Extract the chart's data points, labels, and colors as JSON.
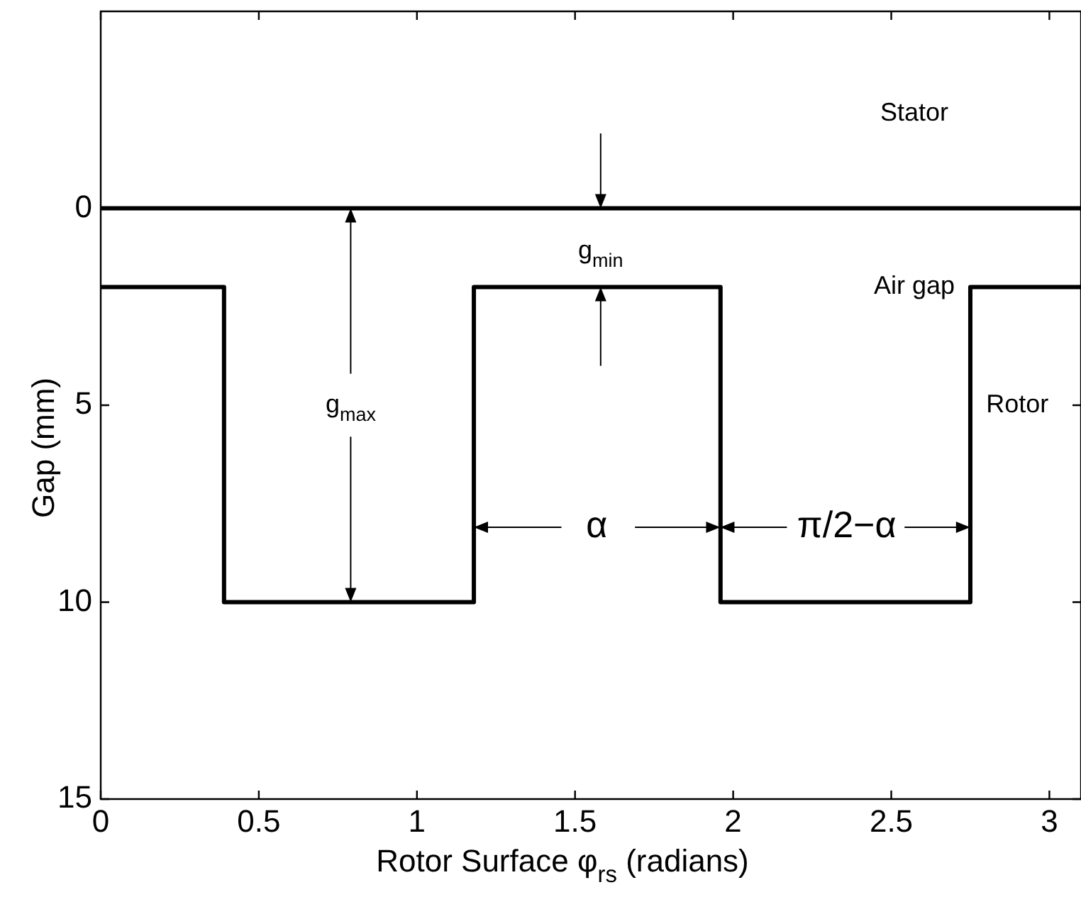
{
  "chart_data": {
    "type": "step",
    "xlabel": "Rotor Surface φ$_{rs}$ (radians)",
    "ylabel": "Gap (mm)",
    "series": [
      {
        "type": "line",
        "color": "#000000",
        "x": [
          0,
          3.1
        ],
        "values": [
          0,
          0
        ]
      },
      {
        "color": "#000000",
        "x": [
          0,
          0.39,
          1.18,
          1.96,
          2.75,
          3.1
        ],
        "values": [
          2,
          10,
          2,
          10,
          2,
          2
        ]
      }
    ],
    "xlim": [
      0,
      3.1
    ],
    "xticks": [
      0,
      0.5,
      1,
      1.5,
      2,
      2.5,
      3
    ],
    "ylim": [
      15,
      -5
    ],
    "yticks": [
      0,
      5,
      10,
      15
    ],
    "grid": false,
    "legend": false,
    "marker": "none",
    "line_style": "solid",
    "annotations": [
      "g$_{max}$",
      "g$_{min}$",
      "α",
      "π/2−α",
      "Stator",
      "Air gap",
      "Rotor"
    ]
  }
}
